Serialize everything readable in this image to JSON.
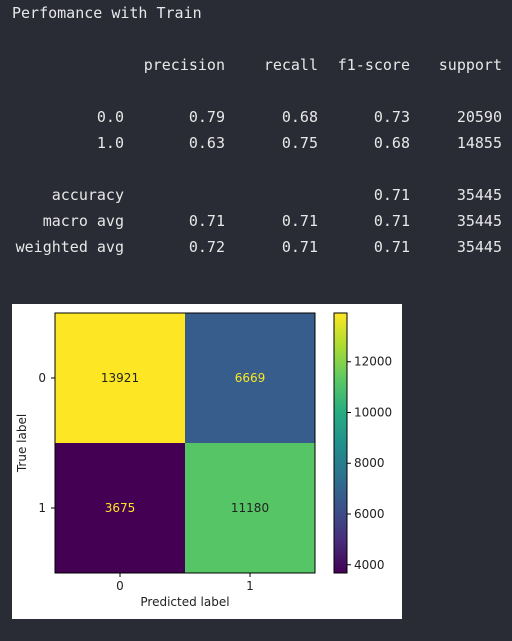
{
  "output": {
    "title": "Perfomance with Train",
    "report": {
      "headers": [
        "precision",
        "recall",
        "f1-score",
        "support"
      ],
      "rows": [
        {
          "label": "0.0",
          "precision": "0.79",
          "recall": "0.68",
          "f1": "0.73",
          "support": "20590"
        },
        {
          "label": "1.0",
          "precision": "0.63",
          "recall": "0.75",
          "f1": "0.68",
          "support": "14855"
        },
        {
          "label": "accuracy",
          "precision": "",
          "recall": "",
          "f1": "0.71",
          "support": "35445"
        },
        {
          "label": "macro avg",
          "precision": "0.71",
          "recall": "0.71",
          "f1": "0.71",
          "support": "35445"
        },
        {
          "label": "weighted avg",
          "precision": "0.72",
          "recall": "0.71",
          "f1": "0.71",
          "support": "35445"
        }
      ]
    }
  },
  "chart_data": {
    "type": "heatmap",
    "xlabel": "Predicted label",
    "ylabel": "True label",
    "x_categories": [
      "0",
      "1"
    ],
    "y_categories": [
      "0",
      "1"
    ],
    "values": [
      [
        13921,
        6669
      ],
      [
        3675,
        11180
      ]
    ],
    "colormap": "viridis",
    "colorbar": {
      "min": 3675,
      "max": 13921,
      "ticks": [
        4000,
        6000,
        8000,
        10000,
        12000
      ]
    },
    "text_colors": {
      "light": "#fde725",
      "dark": "#222222"
    }
  }
}
